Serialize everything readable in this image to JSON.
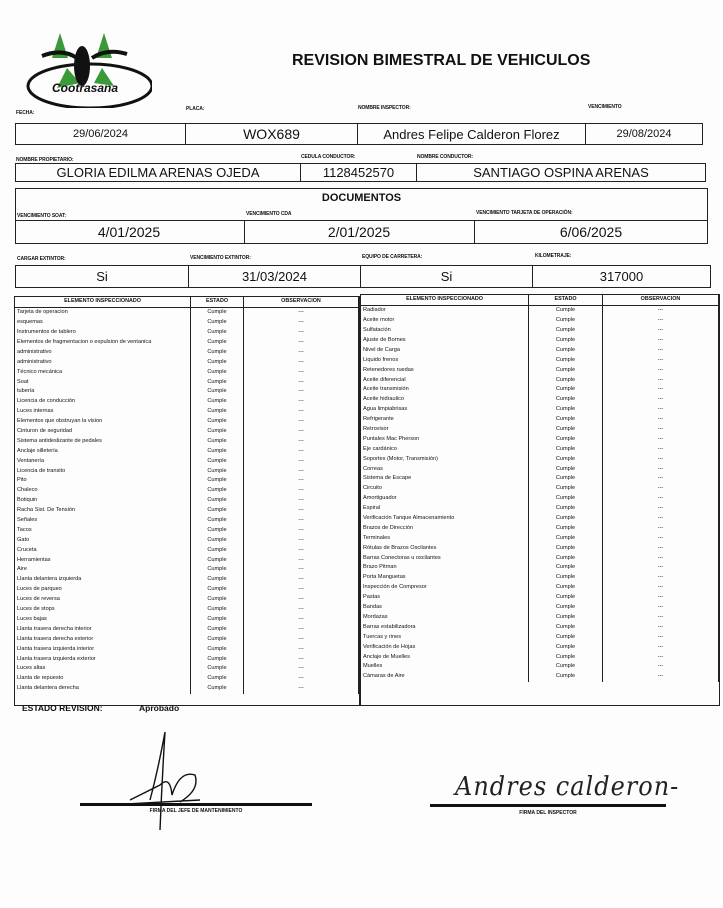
{
  "logo": {
    "text": "Cootrasana",
    "colors": {
      "green": "#3a9a3a",
      "black": "#111111"
    }
  },
  "title": "REVISION BIMESTRAL DE VEHICULOS",
  "row1": {
    "labels": [
      "FECHA:",
      "PLACA:",
      "NOMBRE INSPECTOR:",
      "VENCIMIENTO"
    ],
    "values": [
      "29/06/2024",
      "WOX689",
      "Andres Felipe Calderon Florez",
      "29/08/2024"
    ]
  },
  "row2": {
    "labels": [
      "NOMBRE PROPIETARIO:",
      "CEDULA CONDUCTOR:",
      "NOMBRE CONDUCTOR:"
    ],
    "values": [
      "GLORIA EDILMA ARENAS OJEDA",
      "1128452570",
      "SANTIAGO OSPINA ARENAS"
    ]
  },
  "documentos": {
    "title": "DOCUMENTOS",
    "labels": [
      "VENCIMIENTO SOAT:",
      "VENCIMIENTO CDA",
      "VENCIMIENTO TARJETA DE OPERACIÓN:"
    ],
    "values": [
      "4/01/2025",
      "2/01/2025",
      "6/06/2025"
    ]
  },
  "row4": {
    "labels": [
      "CARGAR EXTINTOR:",
      "VENCIMIENTO EXTINTOR:",
      "EQUIPO DE CARRETERA:",
      "KILOMETRAJE:"
    ],
    "values": [
      "Si",
      "31/03/2024",
      "Si",
      "317000"
    ]
  },
  "table_headers": [
    "ELEMENTO INSPECCIONADO",
    "ESTADO",
    "OBSERVACION"
  ],
  "left_table": {
    "estado": "Cumple",
    "observacion": "---",
    "items": [
      "Tarjeta de operacion",
      "esquemas",
      "Instrumentos de tablero",
      "Elementos de fragmentacion o expulsion de ventanica",
      "administrativo",
      "administrativo",
      "Técnico mecánica",
      "Soat",
      "tubería",
      "Licencia de conducción",
      "Luces internas",
      "Elementos que obstruyan la vision",
      "Cinturon de seguridad",
      "Sistema antideslizante de pedales",
      "Anclaje silletería",
      "Ventanería",
      "Licencia de transito",
      "Pito",
      "Chaleco",
      "Botiquin",
      "Racha Sist. De Tensión",
      "Señales",
      "Tacos",
      "Gato",
      "Cruceta",
      "Herramientas",
      "Aire",
      "Llanta delantera izquierda",
      "Luces de parqueo",
      "Luces de reversa",
      "Luces de stops",
      "Luces bajas",
      "Llanta trasera derecha interior",
      "Llanta trasera derecha exterior",
      "Llanta trasera izquierda interior",
      "Llanta trasera izquierda exterior",
      "Luces altas",
      "Llanta de repuesto",
      "Llanta delantera derecha"
    ]
  },
  "right_table": {
    "estado": "Cumple",
    "observacion": "---",
    "items": [
      "Radiador",
      "Aceite motor",
      "Sulfatación",
      "Ajuste de Bornes",
      "Nivel de Carga",
      "Liquido frenos",
      "Retenedores ruedas",
      "Aceite diferencial",
      "Aceite transmisión",
      "Aceite hidraulico",
      "Agua limpiabrisas",
      "Refrigerante",
      "Retrovisor",
      "Puntales Mac Pherson",
      "Eje cardánico",
      "Soportes (Motor, Transmisión)",
      "Correas",
      "Sistema de Escape",
      "Circuito",
      "Amortiguador",
      "Espiral",
      "Verificación Tanque Almacenamiento",
      "Brazos de Dirección",
      "Terminales",
      "Rótulas de Brazos Oscilantes",
      "Barras Conectoras u oscilantes",
      "Brazo Pitman",
      "Porta Manguetas",
      "Inspección de Compresor",
      "Pastas",
      "Bandas",
      "Mordazas",
      "Barras estabilizadora",
      "Tuercas y rines",
      "Verificación de Hojas",
      "Anclaje de Muelles",
      "Muelles",
      "Cámaras de Aire"
    ]
  },
  "estado_revision": {
    "label": "ESTADO REVISION:",
    "value": "Aprobado"
  },
  "signatures": {
    "left_label": "FIRMA DEL JEFE DE MANTENIMIENTO",
    "right_label": "FIRMA DEL INSPECTOR",
    "right_signature": "Andres calderon-"
  }
}
